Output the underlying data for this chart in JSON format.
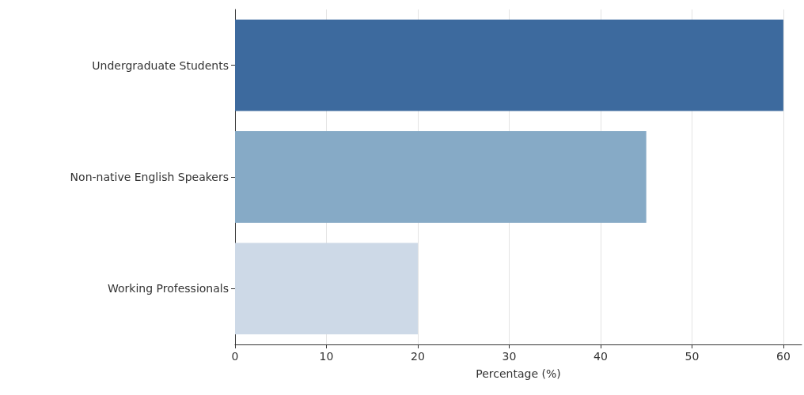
{
  "chart_data": {
    "type": "bar",
    "orientation": "horizontal",
    "xlabel": "Percentage (%)",
    "categories": [
      "Undergraduate Students",
      "Non-native English Speakers",
      "Working Professionals"
    ],
    "values": [
      60,
      45,
      20
    ],
    "colors": [
      "#3d6a9e",
      "#86aac6",
      "#cdd9e7"
    ],
    "xlim": [
      0,
      62
    ],
    "xticks": [
      0,
      10,
      20,
      30,
      40,
      50,
      60
    ],
    "grid": "x"
  }
}
